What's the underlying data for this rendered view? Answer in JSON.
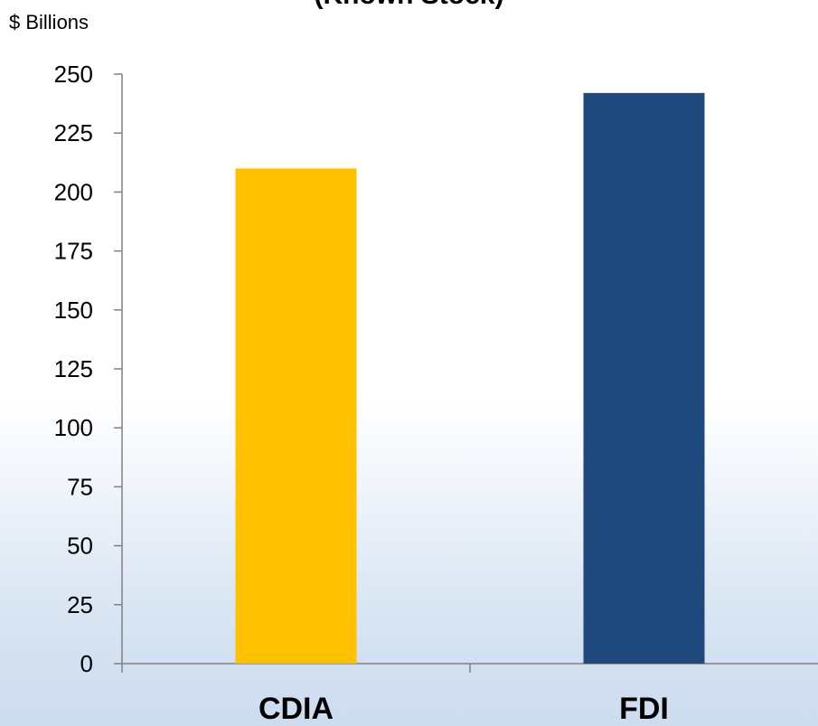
{
  "chart_data": {
    "type": "bar",
    "title": "(Known Stock)",
    "unit_label": "$ Billions",
    "categories": [
      "CDIA",
      "FDI"
    ],
    "values": [
      210,
      242
    ],
    "ylim": [
      0,
      250
    ],
    "yticks": [
      0,
      25,
      50,
      75,
      100,
      125,
      150,
      175,
      200,
      225,
      250
    ],
    "grid": false,
    "legend": "none",
    "colors": [
      "#FFC000",
      "#1F497D"
    ],
    "axis_color": "#808080"
  }
}
